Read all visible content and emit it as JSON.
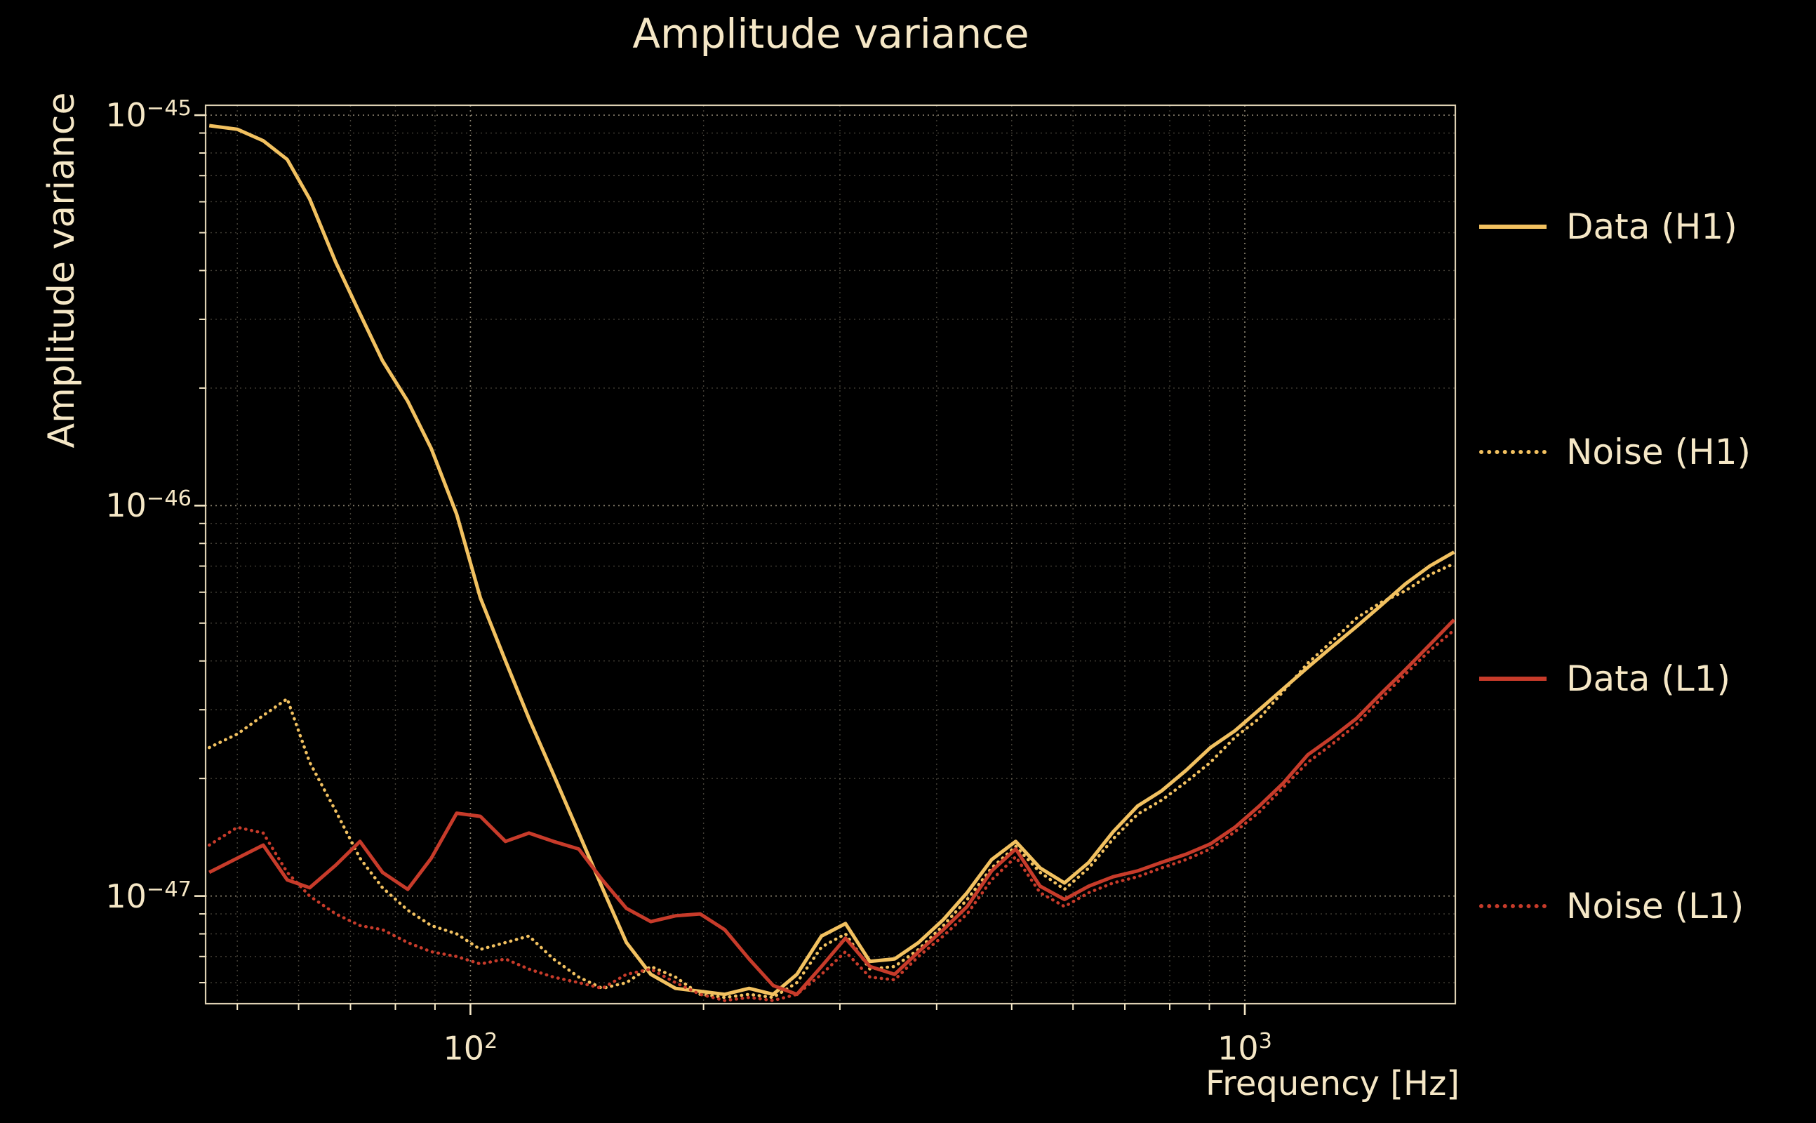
{
  "title": "Amplitude variance",
  "axes": {
    "xlabel": "Frequency [Hz]",
    "ylabel": "Amplitude variance",
    "x_ticks": [
      {
        "value": 100,
        "label_base": "10",
        "label_exp": "2"
      },
      {
        "value": 1000,
        "label_base": "10",
        "label_exp": "3"
      }
    ],
    "y_ticks": [
      {
        "value": 1e-45,
        "label_base": "10",
        "label_exp": "−45"
      },
      {
        "value": 1e-46,
        "label_base": "10",
        "label_exp": "−46"
      },
      {
        "value": 1e-47,
        "label_base": "10",
        "label_exp": "−47"
      }
    ]
  },
  "colors": {
    "background": "#000000",
    "text": "#f5e7c6",
    "grid": "#f5e7c6",
    "h1": "#f2c160",
    "l1": "#c73b2a"
  },
  "legend": {
    "items": [
      {
        "label": "Data (H1)",
        "series": 0
      },
      {
        "label": "Noise (H1)",
        "series": 1
      },
      {
        "label": "Data (L1)",
        "series": 2
      },
      {
        "label": "Noise (L1)",
        "series": 3
      }
    ]
  },
  "chart_data": {
    "type": "line",
    "title": "Amplitude variance",
    "xlabel": "Frequency [Hz]",
    "ylabel": "Amplitude variance",
    "xscale": "log",
    "yscale": "log",
    "xlim": [
      45.5,
      1870
    ],
    "ylim": [
      5.3e-48,
      1.06e-45
    ],
    "grid": true,
    "legend_position": "right-outside",
    "x": [
      46,
      50,
      54,
      58,
      62,
      67,
      72,
      77,
      83,
      89,
      96,
      103,
      111,
      119,
      128,
      138,
      148,
      159,
      171,
      184,
      198,
      213,
      229,
      246,
      264,
      284,
      305,
      328,
      353,
      379,
      408,
      438,
      471,
      506,
      544,
      585,
      629,
      676,
      727,
      781,
      840,
      903,
      971,
      1044,
      1122,
      1206,
      1297,
      1394,
      1499,
      1612,
      1733,
      1863
    ],
    "series": [
      {
        "name": "Data (H1)",
        "color": "#f2c160",
        "linestyle": "solid",
        "values": [
          9.4e-46,
          9.2e-46,
          8.6e-46,
          7.7e-46,
          6.1e-46,
          4.2e-46,
          3.1e-46,
          2.35e-46,
          1.85e-46,
          1.4e-46,
          9.5e-47,
          5.8e-47,
          4e-47,
          2.85e-47,
          2.05e-47,
          1.45e-47,
          1.05e-47,
          7.6e-48,
          6.3e-48,
          5.8e-48,
          5.7e-48,
          5.6e-48,
          5.8e-48,
          5.6e-48,
          6.3e-48,
          7.9e-48,
          8.5e-48,
          6.8e-48,
          6.9e-48,
          7.6e-48,
          8.7e-48,
          1.02e-47,
          1.24e-47,
          1.38e-47,
          1.18e-47,
          1.08e-47,
          1.22e-47,
          1.46e-47,
          1.7e-47,
          1.86e-47,
          2.1e-47,
          2.4e-47,
          2.65e-47,
          3e-47,
          3.4e-47,
          3.85e-47,
          4.35e-47,
          4.9e-47,
          5.55e-47,
          6.3e-47,
          7e-47,
          7.6e-47
        ]
      },
      {
        "name": "Noise (H1)",
        "color": "#f2c160",
        "linestyle": "dotted",
        "values": [
          2.4e-47,
          2.6e-47,
          2.9e-47,
          3.2e-47,
          2.2e-47,
          1.65e-47,
          1.25e-47,
          1.05e-47,
          9.2e-48,
          8.4e-48,
          8e-48,
          7.3e-48,
          7.6e-48,
          7.9e-48,
          6.9e-48,
          6.2e-48,
          5.8e-48,
          6e-48,
          6.6e-48,
          6.2e-48,
          5.6e-48,
          5.5e-48,
          5.6e-48,
          5.5e-48,
          6e-48,
          7.4e-48,
          8e-48,
          6.5e-48,
          6.6e-48,
          7.3e-48,
          8.4e-48,
          9.8e-48,
          1.18e-47,
          1.34e-47,
          1.15e-47,
          1.04e-47,
          1.18e-47,
          1.4e-47,
          1.62e-47,
          1.76e-47,
          1.96e-47,
          2.2e-47,
          2.55e-47,
          2.85e-47,
          3.35e-47,
          3.95e-47,
          4.5e-47,
          5.15e-47,
          5.65e-47,
          6.05e-47,
          6.65e-47,
          7.1e-47
        ]
      },
      {
        "name": "Data (L1)",
        "color": "#c73b2a",
        "linestyle": "solid",
        "values": [
          1.15e-47,
          1.25e-47,
          1.35e-47,
          1.1e-47,
          1.05e-47,
          1.2e-47,
          1.38e-47,
          1.15e-47,
          1.04e-47,
          1.25e-47,
          1.63e-47,
          1.6e-47,
          1.38e-47,
          1.45e-47,
          1.38e-47,
          1.32e-47,
          1.1e-47,
          9.3e-48,
          8.6e-48,
          8.9e-48,
          9e-48,
          8.2e-48,
          6.9e-48,
          5.9e-48,
          5.6e-48,
          6.6e-48,
          7.8e-48,
          6.6e-48,
          6.3e-48,
          7.2e-48,
          8.2e-48,
          9.4e-48,
          1.16e-47,
          1.32e-47,
          1.06e-47,
          9.8e-48,
          1.06e-47,
          1.12e-47,
          1.16e-47,
          1.22e-47,
          1.28e-47,
          1.36e-47,
          1.5e-47,
          1.7e-47,
          1.95e-47,
          2.3e-47,
          2.55e-47,
          2.85e-47,
          3.3e-47,
          3.8e-47,
          4.4e-47,
          5.1e-47
        ]
      },
      {
        "name": "Noise (L1)",
        "color": "#c73b2a",
        "linestyle": "dotted",
        "values": [
          1.35e-47,
          1.5e-47,
          1.45e-47,
          1.15e-47,
          1e-47,
          9e-48,
          8.4e-48,
          8.2e-48,
          7.6e-48,
          7.2e-48,
          7e-48,
          6.7e-48,
          6.9e-48,
          6.5e-48,
          6.2e-48,
          6e-48,
          5.8e-48,
          6.3e-48,
          6.5e-48,
          6e-48,
          5.6e-48,
          5.4e-48,
          5.5e-48,
          5.4e-48,
          5.6e-48,
          6.3e-48,
          7.2e-48,
          6.2e-48,
          6.1e-48,
          7e-48,
          7.9e-48,
          9e-48,
          1.1e-47,
          1.26e-47,
          1.02e-47,
          9.4e-48,
          1.02e-47,
          1.08e-47,
          1.12e-47,
          1.18e-47,
          1.24e-47,
          1.32e-47,
          1.46e-47,
          1.64e-47,
          1.9e-47,
          2.2e-47,
          2.45e-47,
          2.75e-47,
          3.2e-47,
          3.7e-47,
          4.25e-47,
          4.8e-47
        ]
      }
    ]
  }
}
